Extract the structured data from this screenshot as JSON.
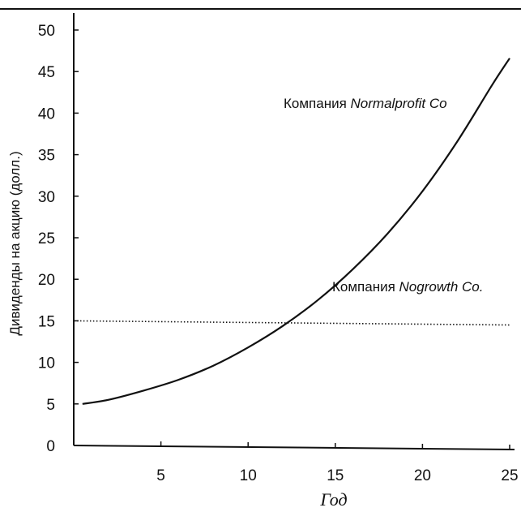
{
  "chart_data": {
    "type": "line",
    "xlabel": "Год",
    "ylabel": "Дивиденды на акцию (долл.)",
    "xlim": [
      0,
      25
    ],
    "ylim": [
      0,
      50
    ],
    "xticks": [
      5,
      10,
      15,
      20,
      25
    ],
    "yticks": [
      0,
      5,
      10,
      15,
      20,
      25,
      30,
      35,
      40,
      45,
      50
    ],
    "grid": false,
    "series": [
      {
        "name": "Компания Normalprofit Co",
        "style": "solid",
        "x": [
          0.5,
          2,
          4,
          6,
          8,
          10,
          12,
          14,
          16,
          18,
          20,
          22,
          24,
          25
        ],
        "y": [
          5,
          5.5,
          6.6,
          7.9,
          9.6,
          11.8,
          14.4,
          17.5,
          21.2,
          25.5,
          30.6,
          36.6,
          43.4,
          46.6
        ]
      },
      {
        "name": "Компания Nogrowth Co.",
        "style": "dotted",
        "x": [
          0,
          25
        ],
        "y": [
          15,
          14.5
        ]
      }
    ],
    "annotations": [
      {
        "prefix": "Компания ",
        "name": "Normalprofit Co",
        "series": 0
      },
      {
        "prefix": "Компания ",
        "name": "Nogrowth Co.",
        "series": 1
      }
    ]
  }
}
